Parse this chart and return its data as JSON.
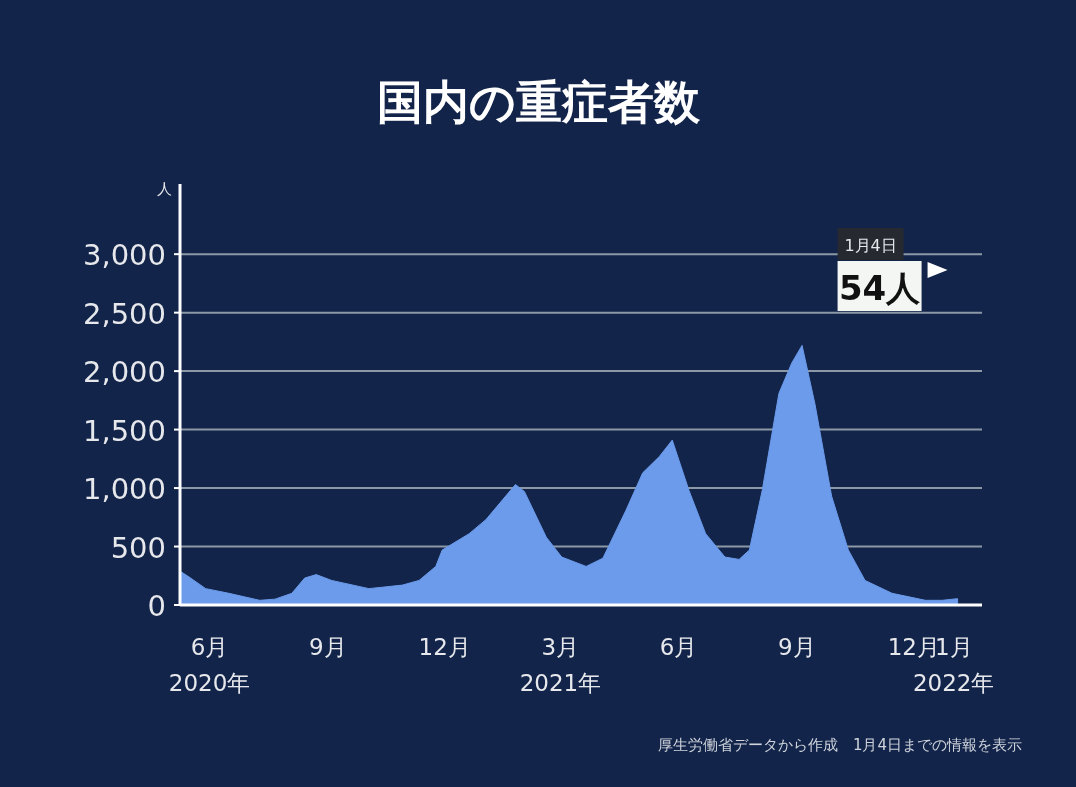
{
  "chart_data": {
    "type": "area",
    "title": "国内の重症者数",
    "ylabel": "人",
    "x": [
      "2020-05-09",
      "2020-05-16",
      "2020-05-29",
      "2020-06-16",
      "2020-07-10",
      "2020-07-22",
      "2020-08-04",
      "2020-08-14",
      "2020-08-23",
      "2020-09-04",
      "2020-10-03",
      "2020-10-29",
      "2020-11-11",
      "2020-11-24",
      "2020-11-29",
      "2020-12-20",
      "2021-01-02",
      "2021-01-15",
      "2021-01-25",
      "2021-02-01",
      "2021-02-18",
      "2021-03-02",
      "2021-03-21",
      "2021-04-03",
      "2021-04-21",
      "2021-05-04",
      "2021-05-17",
      "2021-05-27",
      "2021-06-09",
      "2021-06-22",
      "2021-07-07",
      "2021-07-18",
      "2021-07-26",
      "2021-08-05",
      "2021-08-18",
      "2021-08-28",
      "2021-09-05",
      "2021-09-15",
      "2021-09-28",
      "2021-10-11",
      "2021-10-24",
      "2021-11-14",
      "2021-12-10",
      "2021-12-23",
      "2022-01-04"
    ],
    "values": [
      290,
      240,
      140,
      100,
      40,
      50,
      100,
      230,
      260,
      210,
      140,
      170,
      210,
      330,
      470,
      610,
      730,
      900,
      1030,
      970,
      580,
      410,
      330,
      400,
      810,
      1130,
      1270,
      1410,
      980,
      610,
      410,
      390,
      470,
      980,
      1810,
      2070,
      2220,
      1720,
      930,
      470,
      210,
      100,
      40,
      40,
      54
    ],
    "color": "#6b9bea",
    "xlim": [
      "2020-05-09",
      "2022-01-23"
    ],
    "xticks": [
      {
        "value": "2020-06-01",
        "label": "6月\n2020年"
      },
      {
        "value": "2020-09-01",
        "label": "9月"
      },
      {
        "value": "2020-12-01",
        "label": "12月"
      },
      {
        "value": "2021-03-01",
        "label": "3月\n2021年"
      },
      {
        "value": "2021-06-01",
        "label": "6月"
      },
      {
        "value": "2021-09-01",
        "label": "9月"
      },
      {
        "value": "2021-12-01",
        "label": "12月"
      },
      {
        "value": "2022-01-01",
        "label": "1月\n2022年"
      }
    ],
    "ylim": [
      0,
      3600
    ],
    "yticks": [
      0,
      500,
      {
        "value": 1000,
        "label": "1,000"
      },
      {
        "value": 1500,
        "label": "1,500"
      },
      {
        "value": 2000,
        "label": "2,000"
      },
      {
        "value": 2500,
        "label": "2,500"
      },
      {
        "value": 3000,
        "label": "3,000"
      }
    ],
    "grid": "y",
    "annotations": [
      "1月4日",
      "54人",
      "厚生労働省データから作成　1月4日までの情報を表示"
    ]
  }
}
